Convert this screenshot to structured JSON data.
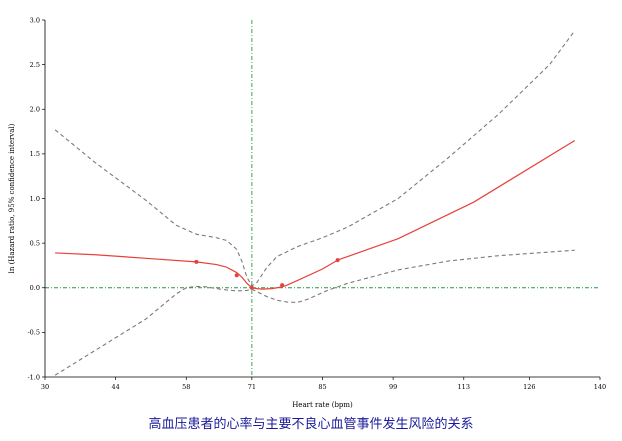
{
  "caption": "高血压患者的心率与主要不良心血管事件发生风险的关系",
  "chart_data": {
    "type": "line",
    "title": "",
    "xlabel": "Heart rate (bpm)",
    "ylabel": "ln (Hazard ratio, 95% confidence interval)",
    "xlim": [
      30,
      140
    ],
    "ylim": [
      -1.0,
      3.0
    ],
    "x_ticks": [
      30,
      44,
      58,
      71,
      85,
      99,
      113,
      126,
      140
    ],
    "y_ticks": [
      "-1.0",
      "-0.5",
      "0.0",
      "0.5",
      "1.0",
      "1.5",
      "2.0",
      "2.5",
      "3.0"
    ],
    "reference_lines": {
      "x": 71,
      "y": 0
    },
    "grid": false,
    "series": [
      {
        "role": "estimate",
        "color": "#e8403a",
        "style": "solid",
        "x": [
          32,
          40,
          50,
          60,
          64,
          66,
          68,
          69,
          70,
          71,
          72,
          73,
          75,
          77,
          78,
          80,
          85,
          88,
          100,
          115,
          135
        ],
        "y": [
          0.39,
          0.37,
          0.33,
          0.29,
          0.26,
          0.23,
          0.17,
          0.12,
          0.05,
          0.0,
          -0.01,
          -0.015,
          -0.01,
          0.01,
          0.03,
          0.08,
          0.21,
          0.31,
          0.55,
          0.96,
          1.65
        ]
      },
      {
        "role": "upper-ci",
        "color": "#7a7a7a",
        "style": "dashed",
        "x": [
          32,
          40,
          50,
          56,
          60,
          64,
          66,
          68,
          69,
          70,
          71,
          72,
          74,
          76,
          80,
          85,
          90,
          100,
          110,
          120,
          130,
          135
        ],
        "y": [
          1.77,
          1.4,
          0.98,
          0.7,
          0.6,
          0.56,
          0.53,
          0.43,
          0.3,
          0.12,
          0.02,
          0.06,
          0.23,
          0.35,
          0.46,
          0.56,
          0.68,
          1.0,
          1.46,
          1.95,
          2.5,
          2.88
        ]
      },
      {
        "role": "lower-ci",
        "color": "#7a7a7a",
        "style": "dashed",
        "x": [
          32,
          40,
          50,
          56,
          58,
          60,
          62,
          64,
          66,
          68,
          70,
          71,
          72,
          74,
          76,
          78,
          80,
          82,
          86,
          90,
          100,
          110,
          120,
          135
        ],
        "y": [
          -0.98,
          -0.7,
          -0.35,
          -0.07,
          0.0,
          0.015,
          0.01,
          -0.01,
          -0.025,
          -0.035,
          -0.03,
          -0.015,
          -0.045,
          -0.1,
          -0.14,
          -0.16,
          -0.165,
          -0.13,
          -0.03,
          0.05,
          0.2,
          0.3,
          0.36,
          0.42
        ]
      }
    ],
    "knots": {
      "color": "#e8403a",
      "x": [
        60,
        68,
        71,
        77,
        88
      ],
      "y": [
        0.29,
        0.14,
        0.0,
        0.03,
        0.31
      ]
    },
    "colors": {
      "reference_line": "#2a9a3a",
      "axis": "#000000"
    }
  }
}
